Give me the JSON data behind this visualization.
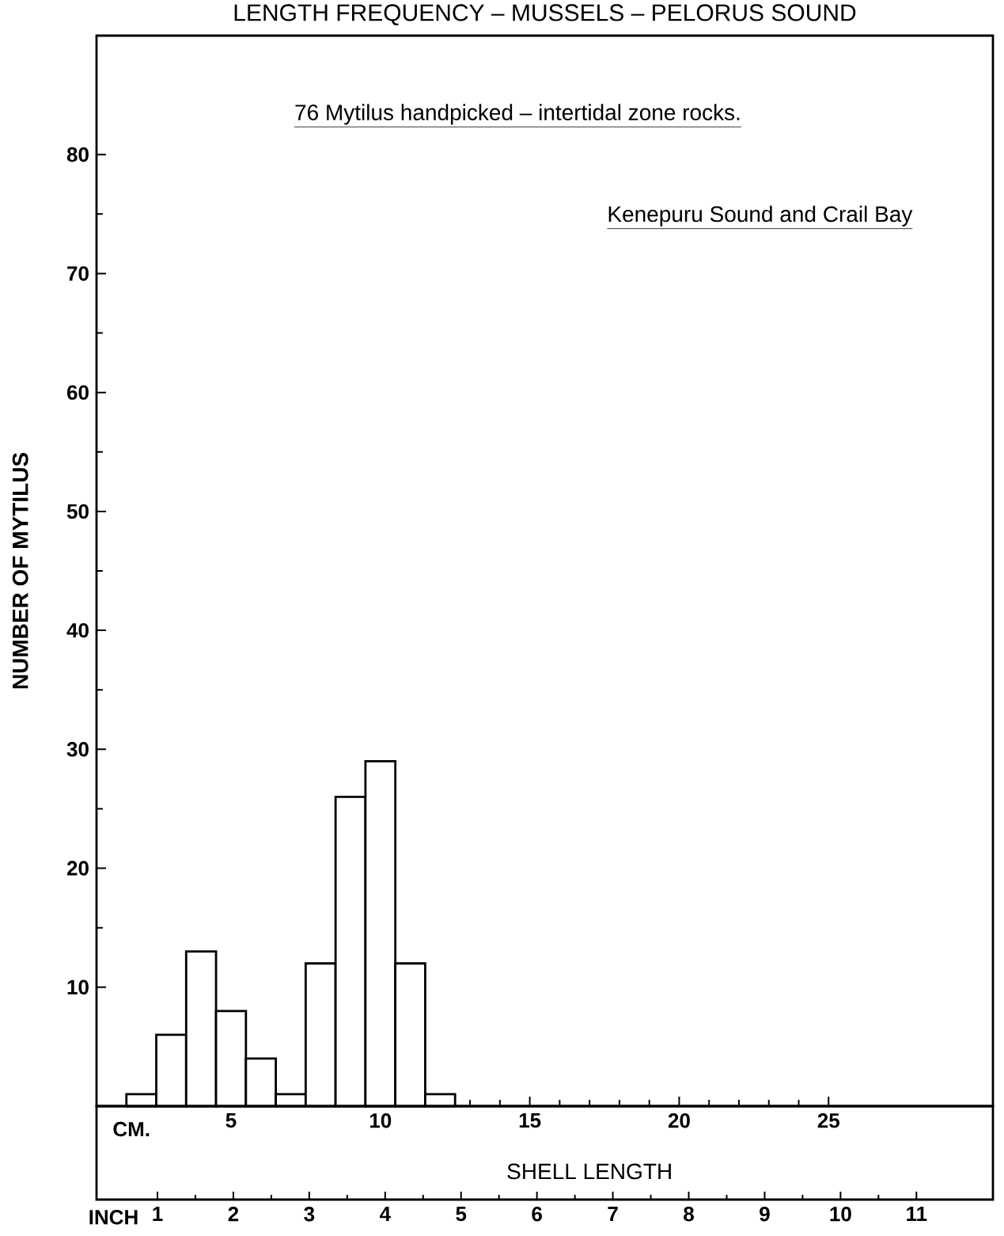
{
  "chart_data": {
    "type": "histogram",
    "title": "LENGTH FREQUENCY – MUSSELS – PELORUS SOUND",
    "subtitle": "76 Mytilus    handpicked – intertidal zone rocks.",
    "xlabel": "SHELL LENGTH",
    "ylabel": "NUMBER OF MYTILUS",
    "x2label": "INCH",
    "annotations": [
      "Kenepuru Sound and Crail Bay",
      "CM."
    ],
    "bins": [
      1.5,
      2.5,
      3.5,
      4.5,
      5.5,
      6.5,
      7.5,
      8.5,
      9.5,
      10.5,
      11.5,
      12.5
    ],
    "values": [
      1,
      6,
      13,
      8,
      4,
      1,
      12,
      26,
      29,
      12,
      1
    ],
    "color": "#ffffff",
    "xlim": [
      0.5,
      30.5
    ],
    "xticks": [
      5,
      10,
      15,
      20,
      25
    ],
    "x2lim": [
      0.197,
      12.008
    ],
    "x2ticks": [
      1,
      2,
      3,
      4,
      5,
      6,
      7,
      8,
      9,
      10,
      11
    ],
    "ylim": [
      0,
      90
    ],
    "yticks": [
      10,
      20,
      30,
      40,
      50,
      60,
      70,
      80
    ]
  }
}
